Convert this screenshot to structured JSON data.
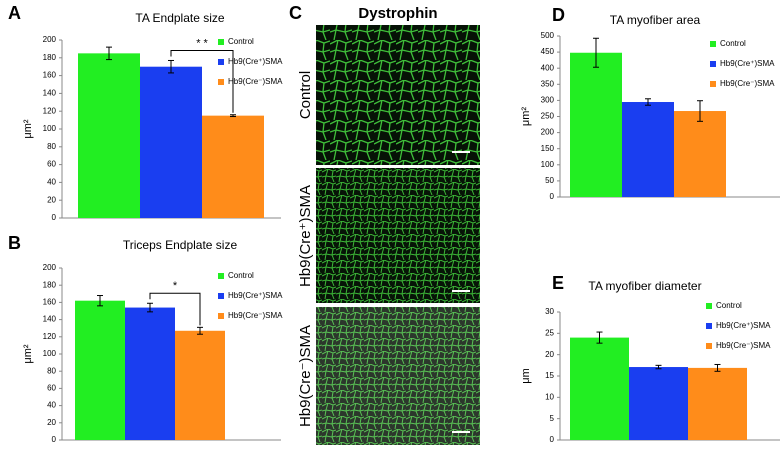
{
  "figure": {
    "panel_labels": [
      "A",
      "B",
      "C",
      "D",
      "E"
    ],
    "image_panel": {
      "title": "Dystrophin",
      "rows": [
        "Control",
        "Hb9(Cre⁺)SMA",
        "Hb9(Cre⁻)SMA"
      ]
    }
  },
  "chart_data": [
    {
      "type": "bar",
      "title": "TA Endplate size",
      "y_label": "μm²",
      "ylim": [
        0,
        200
      ],
      "yticks": [
        0,
        20,
        40,
        60,
        80,
        100,
        120,
        140,
        160,
        180,
        200
      ],
      "significance": "* *",
      "series": [
        {
          "name": "Control",
          "color": "#22ee22",
          "values": [
            185
          ],
          "errors": [
            7
          ]
        },
        {
          "name": "Hb9(Cre⁺)SMA",
          "color": "#1a3ef0",
          "values": [
            170
          ],
          "errors": [
            7
          ]
        },
        {
          "name": "Hb9(Cre⁻)SMA",
          "color": "#ff8c1a",
          "values": [
            115
          ],
          "errors": [
            1
          ]
        }
      ]
    },
    {
      "type": "bar",
      "title": "Triceps Endplate size",
      "y_label": "μm²",
      "ylim": [
        0,
        200
      ],
      "yticks": [
        0,
        20,
        40,
        60,
        80,
        100,
        120,
        140,
        160,
        180,
        200
      ],
      "significance": "*",
      "series": [
        {
          "name": "Control",
          "color": "#22ee22",
          "values": [
            162
          ],
          "errors": [
            6
          ]
        },
        {
          "name": "Hb9(Cre⁺)SMA",
          "color": "#1a3ef0",
          "values": [
            154
          ],
          "errors": [
            5
          ]
        },
        {
          "name": "Hb9(Cre⁻)SMA",
          "color": "#ff8c1a",
          "values": [
            127
          ],
          "errors": [
            4
          ]
        }
      ]
    },
    {
      "type": "bar",
      "title": "TA myofiber area",
      "y_label": "μm²",
      "ylim": [
        0,
        500
      ],
      "yticks": [
        0,
        50,
        100,
        150,
        200,
        250,
        300,
        350,
        400,
        450,
        500
      ],
      "series": [
        {
          "name": "Control",
          "color": "#22ee22",
          "values": [
            448
          ],
          "errors": [
            45
          ]
        },
        {
          "name": "Hb9(Cre⁺)SMA",
          "color": "#1a3ef0",
          "values": [
            295
          ],
          "errors": [
            10
          ]
        },
        {
          "name": "Hb9(Cre⁻)SMA",
          "color": "#ff8c1a",
          "values": [
            267
          ],
          "errors": [
            32
          ]
        }
      ]
    },
    {
      "type": "bar",
      "title": "TA myofiber diameter",
      "y_label": "μm",
      "ylim": [
        0,
        30
      ],
      "yticks": [
        0,
        5,
        10,
        15,
        20,
        25,
        30
      ],
      "series": [
        {
          "name": "Control",
          "color": "#22ee22",
          "values": [
            24
          ],
          "errors": [
            1.3
          ]
        },
        {
          "name": "Hb9(Cre⁺)SMA",
          "color": "#1a3ef0",
          "values": [
            17.1
          ],
          "errors": [
            0.4
          ]
        },
        {
          "name": "Hb9(Cre⁻)SMA",
          "color": "#ff8c1a",
          "values": [
            16.9
          ],
          "errors": [
            0.8
          ]
        }
      ]
    }
  ]
}
